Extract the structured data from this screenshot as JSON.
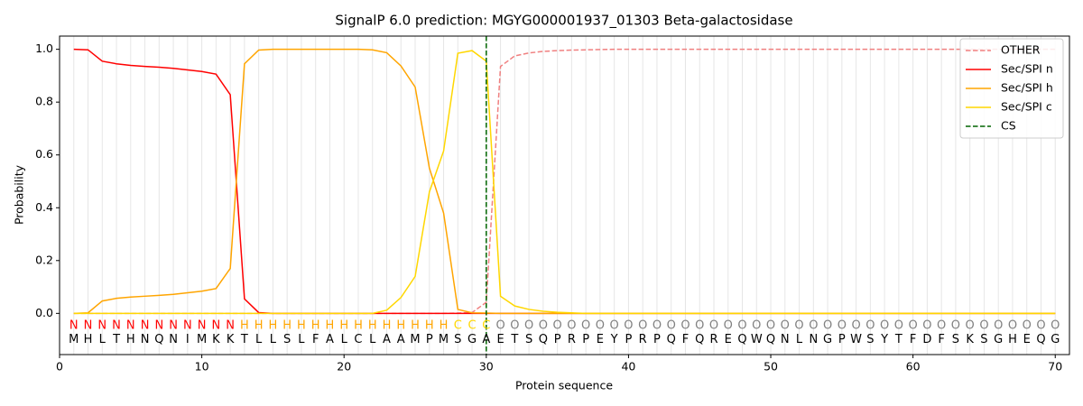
{
  "chart_data": {
    "type": "line",
    "title": "SignalP 6.0 prediction: MGYG000001937_01303 Beta-galactosidase",
    "xlabel": "Protein sequence",
    "ylabel": "Probability",
    "x": [
      1,
      2,
      3,
      4,
      5,
      6,
      7,
      8,
      9,
      10,
      11,
      12,
      13,
      14,
      15,
      16,
      17,
      18,
      19,
      20,
      21,
      22,
      23,
      24,
      25,
      26,
      27,
      28,
      29,
      30,
      31,
      32,
      33,
      34,
      35,
      36,
      37,
      38,
      39,
      40,
      41,
      42,
      43,
      44,
      45,
      46,
      47,
      48,
      49,
      50,
      51,
      52,
      53,
      54,
      55,
      56,
      57,
      58,
      59,
      60,
      61,
      62,
      63,
      64,
      65,
      66,
      67,
      68,
      69,
      70
    ],
    "sequence": [
      "M",
      "H",
      "L",
      "T",
      "H",
      "N",
      "Q",
      "N",
      "I",
      "M",
      "K",
      "K",
      "T",
      "L",
      "L",
      "S",
      "L",
      "F",
      "A",
      "L",
      "C",
      "L",
      "A",
      "A",
      "M",
      "P",
      "M",
      "S",
      "G",
      "A",
      "E",
      "T",
      "S",
      "Q",
      "P",
      "R",
      "P",
      "E",
      "Y",
      "P",
      "R",
      "P",
      "Q",
      "F",
      "Q",
      "R",
      "E",
      "Q",
      "W",
      "Q",
      "N",
      "L",
      "N",
      "G",
      "P",
      "W",
      "S",
      "Y",
      "T",
      "F",
      "D",
      "F",
      "S",
      "K",
      "S",
      "G",
      "H",
      "E",
      "Q",
      "G"
    ],
    "region_labels": [
      "N",
      "N",
      "N",
      "N",
      "N",
      "N",
      "N",
      "N",
      "N",
      "N",
      "N",
      "N",
      "H",
      "H",
      "H",
      "H",
      "H",
      "H",
      "H",
      "H",
      "H",
      "H",
      "H",
      "H",
      "H",
      "H",
      "H",
      "C",
      "C",
      "C",
      "O",
      "O",
      "O",
      "O",
      "O",
      "O",
      "O",
      "O",
      "O",
      "O",
      "O",
      "O",
      "O",
      "O",
      "O",
      "O",
      "O",
      "O",
      "O",
      "O",
      "O",
      "O",
      "O",
      "O",
      "O",
      "O",
      "O",
      "O",
      "O",
      "O",
      "O",
      "O",
      "O",
      "O",
      "O",
      "O",
      "O",
      "O",
      "O",
      "O"
    ],
    "region_colors": {
      "N": "#ff0000",
      "H": "#ffa500",
      "C": "#ffd700",
      "O": "#808080"
    },
    "series": [
      {
        "name": "OTHER",
        "color": "#f08080",
        "dash": true,
        "values": [
          0,
          0,
          0,
          0,
          0,
          0,
          0,
          0,
          0,
          0,
          0,
          0,
          0,
          0,
          0,
          0,
          0,
          0,
          0,
          0,
          0,
          0,
          0,
          0,
          0,
          0,
          0,
          0.001,
          0.003,
          0.042,
          0.935,
          0.975,
          0.986,
          0.992,
          0.995,
          0.997,
          0.998,
          0.999,
          1,
          1,
          1,
          1,
          1,
          1,
          1,
          1,
          1,
          1,
          1,
          1,
          1,
          1,
          1,
          1,
          1,
          1,
          1,
          1,
          1,
          1,
          1,
          1,
          1,
          1,
          1,
          1,
          1,
          1,
          1,
          1
        ]
      },
      {
        "name": "Sec/SPI n",
        "color": "#ff0000",
        "dash": false,
        "values": [
          1,
          0.998,
          0.955,
          0.945,
          0.939,
          0.935,
          0.932,
          0.928,
          0.922,
          0.916,
          0.906,
          0.828,
          0.055,
          0.003,
          0,
          0,
          0,
          0,
          0,
          0,
          0,
          0,
          0,
          0,
          0,
          0,
          0,
          0,
          0,
          0,
          0,
          0,
          0,
          0,
          0,
          0,
          0,
          0,
          0,
          0,
          0,
          0,
          0,
          0,
          0,
          0,
          0,
          0,
          0,
          0,
          0,
          0,
          0,
          0,
          0,
          0,
          0,
          0,
          0,
          0,
          0,
          0,
          0,
          0,
          0,
          0,
          0,
          0,
          0,
          0
        ]
      },
      {
        "name": "Sec/SPI h",
        "color": "#ffa500",
        "dash": false,
        "values": [
          0,
          0.002,
          0.047,
          0.057,
          0.062,
          0.065,
          0.068,
          0.072,
          0.078,
          0.084,
          0.094,
          0.17,
          0.945,
          0.997,
          1,
          1,
          1,
          1,
          1,
          1,
          1,
          0.998,
          0.987,
          0.937,
          0.857,
          0.55,
          0.38,
          0.015,
          0.002,
          0.001,
          0,
          0,
          0,
          0,
          0,
          0,
          0,
          0,
          0,
          0,
          0,
          0,
          0,
          0,
          0,
          0,
          0,
          0,
          0,
          0,
          0,
          0,
          0,
          0,
          0,
          0,
          0,
          0,
          0,
          0,
          0,
          0,
          0,
          0,
          0,
          0,
          0,
          0,
          0,
          0
        ]
      },
      {
        "name": "Sec/SPI c",
        "color": "#ffd700",
        "dash": false,
        "values": [
          0,
          0,
          0,
          0,
          0,
          0,
          0,
          0,
          0,
          0,
          0,
          0,
          0,
          0,
          0,
          0,
          0,
          0,
          0,
          0,
          0,
          0,
          0.012,
          0.06,
          0.14,
          0.46,
          0.615,
          0.985,
          0.995,
          0.955,
          0.065,
          0.028,
          0.015,
          0.008,
          0.004,
          0.002,
          0,
          0,
          0,
          0,
          0,
          0,
          0,
          0,
          0,
          0,
          0,
          0,
          0,
          0,
          0,
          0,
          0,
          0,
          0,
          0,
          0,
          0,
          0,
          0,
          0,
          0,
          0,
          0,
          0,
          0,
          0,
          0,
          0,
          0
        ]
      }
    ],
    "cs": {
      "name": "CS",
      "x": 30,
      "color": "#006400"
    },
    "xlim": [
      0,
      71
    ],
    "ylim": [
      -0.156,
      1.05
    ],
    "xticks": [
      0,
      10,
      20,
      30,
      40,
      50,
      60,
      70
    ],
    "yticks": [
      {
        "value": 0,
        "label": "0.0"
      },
      {
        "value": 0.2,
        "label": "0.2"
      },
      {
        "value": 0.4,
        "label": "0.4"
      },
      {
        "value": 0.6,
        "label": "0.6"
      },
      {
        "value": 0.8,
        "label": "0.8"
      },
      {
        "value": 1,
        "label": "1.0"
      }
    ],
    "legend": "upper right"
  }
}
